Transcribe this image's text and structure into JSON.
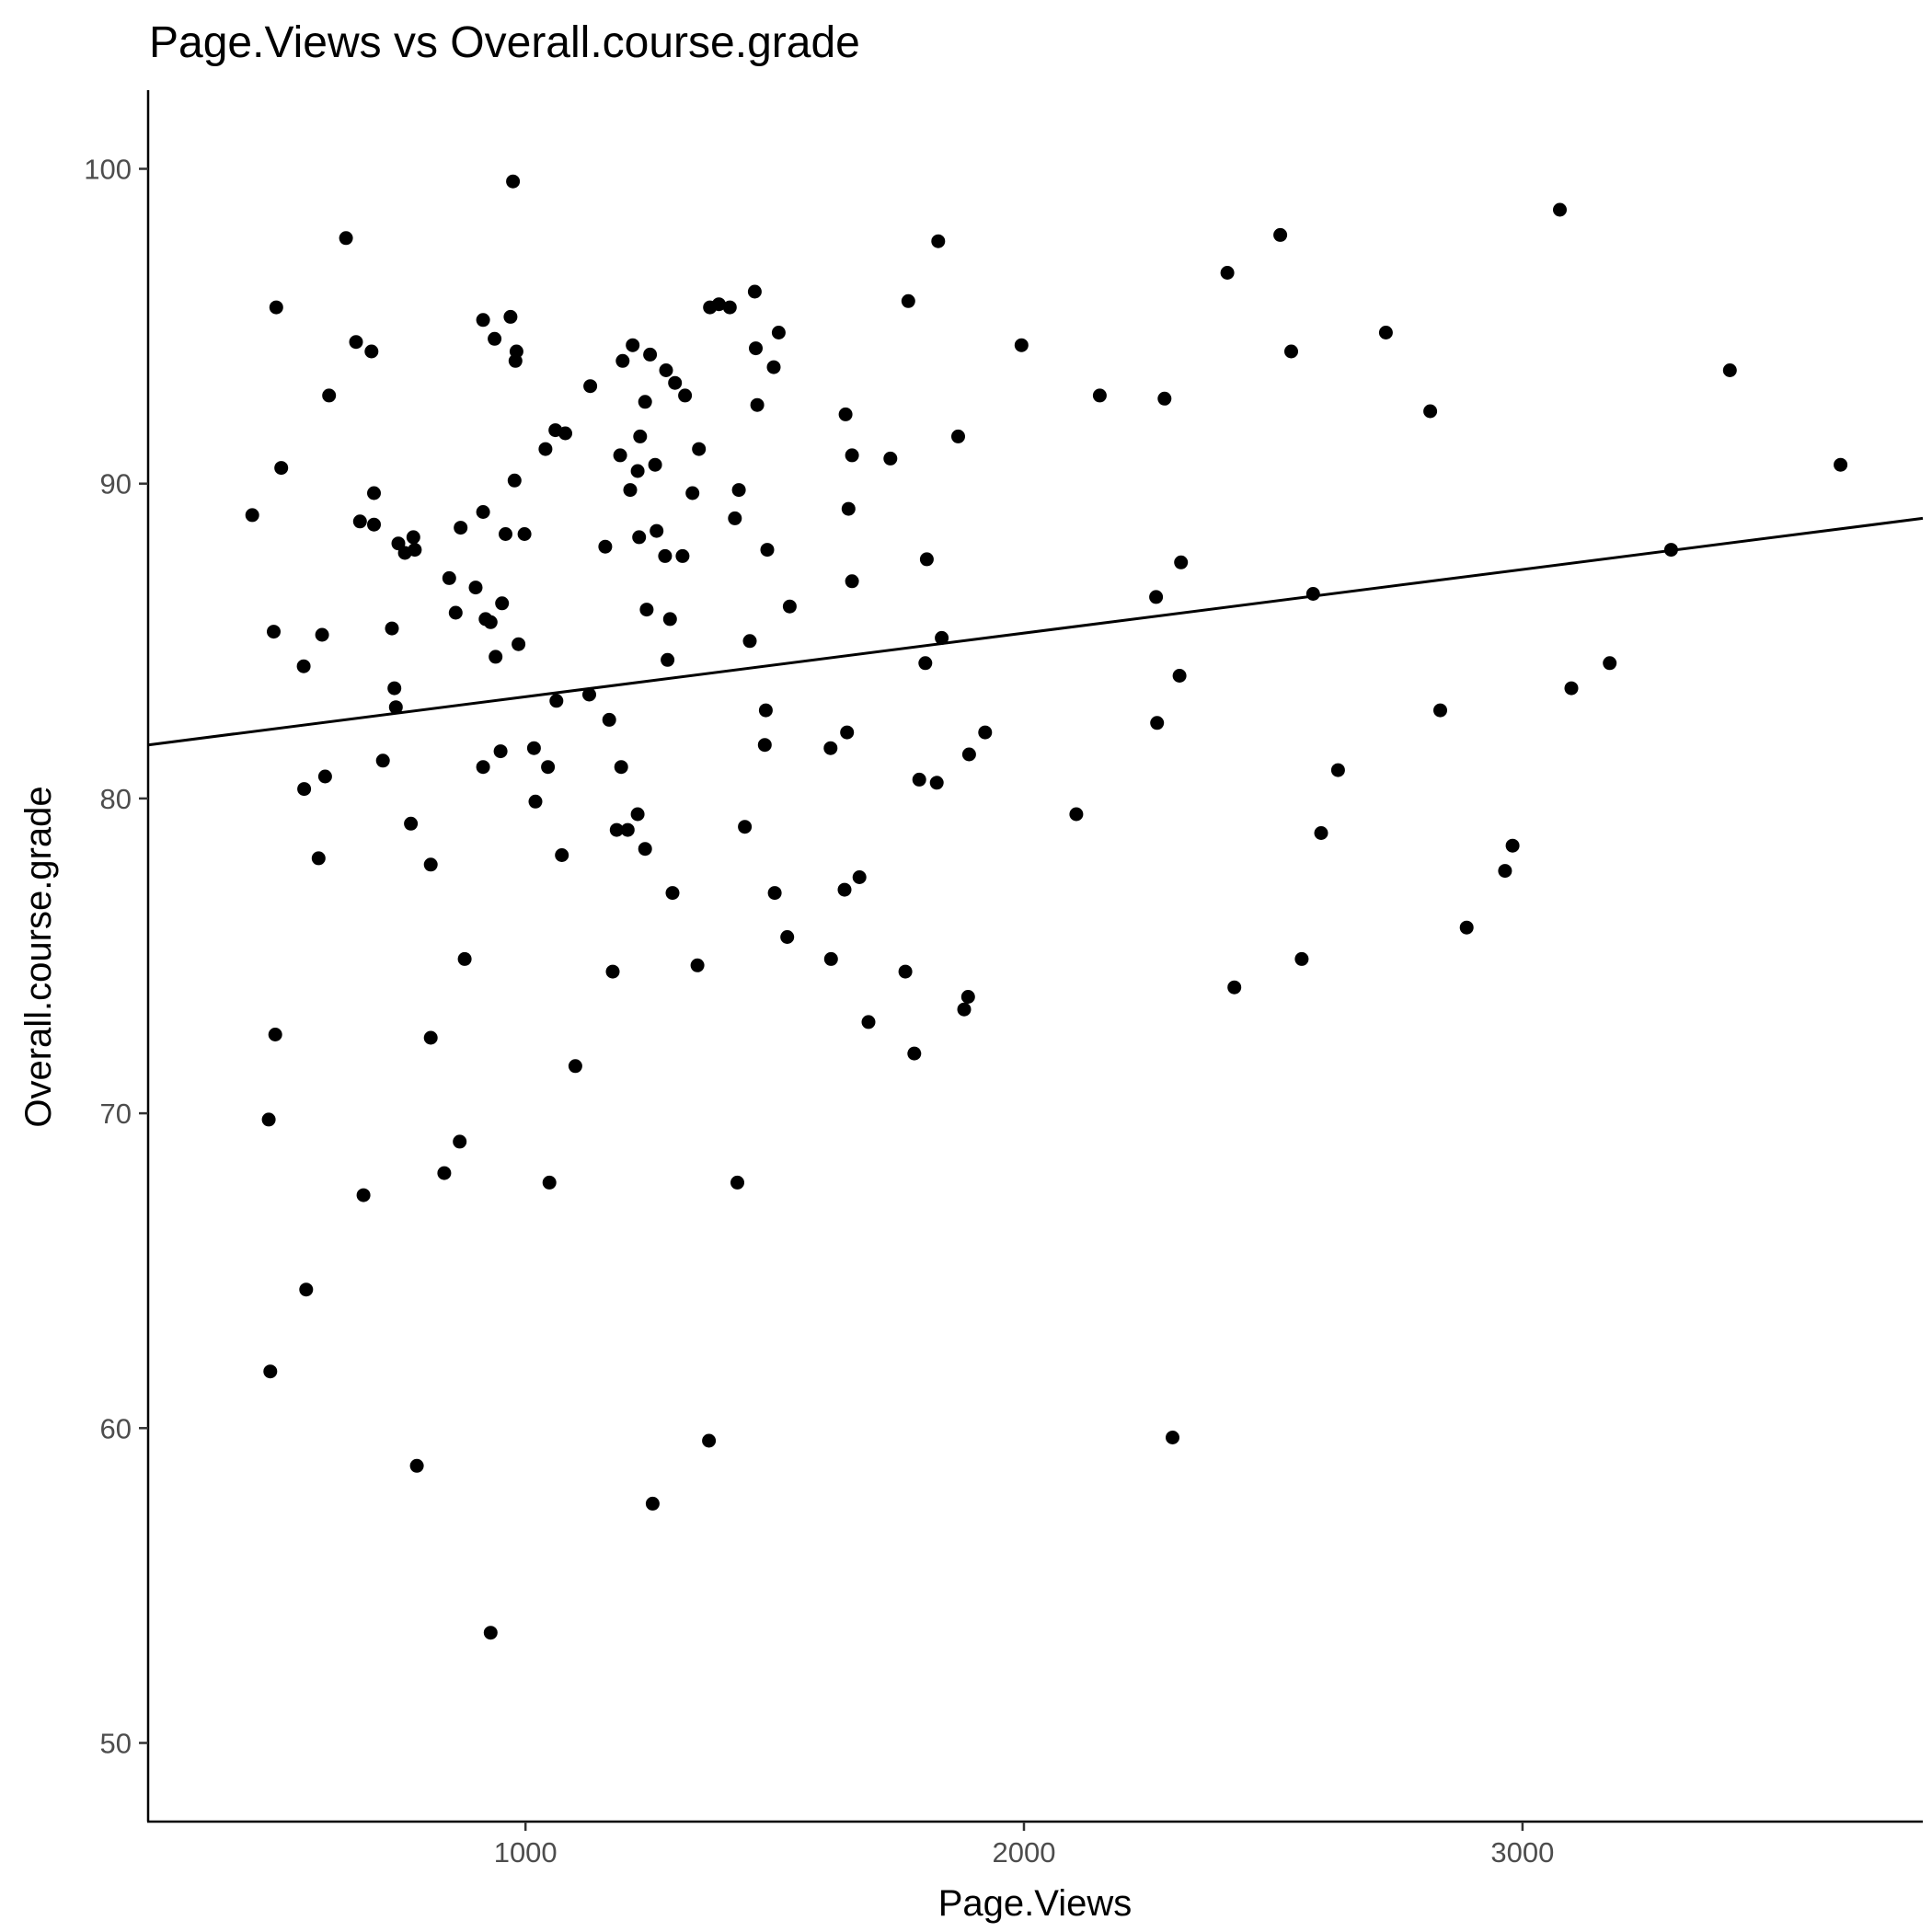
{
  "chart_data": {
    "type": "scatter",
    "title": "Page.Views vs Overall.course.grade",
    "xlabel": "Page.Views",
    "ylabel": "Overall.course.grade",
    "xlim": [
      243,
      3803
    ],
    "ylim": [
      47.5,
      102.5
    ],
    "x_ticks": [
      1000,
      2000,
      3000
    ],
    "y_ticks": [
      50,
      60,
      70,
      80,
      90,
      100
    ],
    "grid": false,
    "trend_line": {
      "x": [
        243,
        3803
      ],
      "y": [
        81.7,
        88.9
      ]
    },
    "points": [
      [
        452,
        89.0
      ],
      [
        495,
        85.3
      ],
      [
        500,
        95.6
      ],
      [
        510,
        90.5
      ],
      [
        498,
        72.5
      ],
      [
        485,
        69.8
      ],
      [
        488,
        61.8
      ],
      [
        555,
        84.2
      ],
      [
        556,
        80.3
      ],
      [
        560,
        64.4
      ],
      [
        585,
        78.1
      ],
      [
        592,
        85.2
      ],
      [
        598,
        80.7
      ],
      [
        606,
        92.8
      ],
      [
        640,
        97.8
      ],
      [
        660,
        94.5
      ],
      [
        668,
        88.8
      ],
      [
        675,
        67.4
      ],
      [
        691,
        94.2
      ],
      [
        696,
        89.7
      ],
      [
        696,
        88.7
      ],
      [
        714,
        81.2
      ],
      [
        732,
        85.4
      ],
      [
        737,
        83.5
      ],
      [
        740,
        82.9
      ],
      [
        745,
        88.1
      ],
      [
        758,
        87.8
      ],
      [
        770,
        79.2
      ],
      [
        775,
        88.3
      ],
      [
        778,
        87.9
      ],
      [
        782,
        58.8
      ],
      [
        810,
        77.9
      ],
      [
        810,
        72.4
      ],
      [
        837,
        68.1
      ],
      [
        847,
        87.0
      ],
      [
        860,
        85.9
      ],
      [
        868,
        69.1
      ],
      [
        870,
        88.6
      ],
      [
        878,
        74.9
      ],
      [
        900,
        86.7
      ],
      [
        915,
        95.2
      ],
      [
        915,
        89.1
      ],
      [
        915,
        81.0
      ],
      [
        920,
        85.7
      ],
      [
        930,
        53.5
      ],
      [
        930,
        85.6
      ],
      [
        938,
        94.6
      ],
      [
        940,
        84.5
      ],
      [
        950,
        81.5
      ],
      [
        953,
        86.2
      ],
      [
        960,
        88.4
      ],
      [
        970,
        95.3
      ],
      [
        975,
        99.6
      ],
      [
        978,
        90.1
      ],
      [
        980,
        93.9
      ],
      [
        982,
        94.2
      ],
      [
        986,
        84.9
      ],
      [
        998,
        88.4
      ],
      [
        1017,
        81.6
      ],
      [
        1020,
        79.9
      ],
      [
        1040,
        91.1
      ],
      [
        1045,
        81.0
      ],
      [
        1048,
        67.8
      ],
      [
        1060,
        91.7
      ],
      [
        1062,
        83.1
      ],
      [
        1073,
        78.2
      ],
      [
        1080,
        91.6
      ],
      [
        1100,
        71.5
      ],
      [
        1128,
        83.3
      ],
      [
        1130,
        93.1
      ],
      [
        1160,
        88.0
      ],
      [
        1168,
        82.5
      ],
      [
        1175,
        74.5
      ],
      [
        1183,
        79.0
      ],
      [
        1190,
        90.9
      ],
      [
        1192,
        81.0
      ],
      [
        1195,
        93.9
      ],
      [
        1205,
        79.0
      ],
      [
        1210,
        89.8
      ],
      [
        1215,
        94.4
      ],
      [
        1225,
        90.4
      ],
      [
        1225,
        79.5
      ],
      [
        1228,
        88.3
      ],
      [
        1230,
        91.5
      ],
      [
        1240,
        92.6
      ],
      [
        1240,
        78.4
      ],
      [
        1243,
        86.0
      ],
      [
        1250,
        94.1
      ],
      [
        1255,
        57.6
      ],
      [
        1260,
        90.6
      ],
      [
        1263,
        88.5
      ],
      [
        1280,
        87.7
      ],
      [
        1282,
        93.6
      ],
      [
        1285,
        84.4
      ],
      [
        1290,
        85.7
      ],
      [
        1295,
        77.0
      ],
      [
        1300,
        93.2
      ],
      [
        1315,
        87.7
      ],
      [
        1320,
        92.8
      ],
      [
        1335,
        89.7
      ],
      [
        1345,
        74.7
      ],
      [
        1348,
        91.1
      ],
      [
        1368,
        59.6
      ],
      [
        1370,
        95.6
      ],
      [
        1388,
        95.7
      ],
      [
        1410,
        95.6
      ],
      [
        1420,
        88.9
      ],
      [
        1425,
        67.8
      ],
      [
        1428,
        89.8
      ],
      [
        1440,
        79.1
      ],
      [
        1450,
        85.0
      ],
      [
        1460,
        96.1
      ],
      [
        1462,
        94.3
      ],
      [
        1465,
        92.5
      ],
      [
        1480,
        81.7
      ],
      [
        1482,
        82.8
      ],
      [
        1485,
        87.9
      ],
      [
        1498,
        93.7
      ],
      [
        1500,
        77.0
      ],
      [
        1508,
        94.8
      ],
      [
        1525,
        75.6
      ],
      [
        1530,
        86.1
      ],
      [
        1612,
        81.6
      ],
      [
        1613,
        74.9
      ],
      [
        1640,
        77.1
      ],
      [
        1642,
        92.2
      ],
      [
        1645,
        82.1
      ],
      [
        1648,
        89.2
      ],
      [
        1655,
        86.9
      ],
      [
        1655,
        90.9
      ],
      [
        1670,
        77.5
      ],
      [
        1688,
        72.9
      ],
      [
        1732,
        90.8
      ],
      [
        1762,
        74.5
      ],
      [
        1768,
        95.8
      ],
      [
        1780,
        71.9
      ],
      [
        1790,
        80.6
      ],
      [
        1802,
        84.3
      ],
      [
        1805,
        87.6
      ],
      [
        1825,
        80.5
      ],
      [
        1828,
        97.7
      ],
      [
        1835,
        85.1
      ],
      [
        1868,
        91.5
      ],
      [
        1880,
        73.3
      ],
      [
        1888,
        73.7
      ],
      [
        1890,
        81.4
      ],
      [
        1922,
        82.1
      ],
      [
        1995,
        94.4
      ],
      [
        2105,
        79.5
      ],
      [
        2152,
        92.8
      ],
      [
        2265,
        86.4
      ],
      [
        2267,
        82.4
      ],
      [
        2282,
        92.7
      ],
      [
        2298,
        59.7
      ],
      [
        2312,
        83.9
      ],
      [
        2315,
        87.5
      ],
      [
        2408,
        96.7
      ],
      [
        2422,
        74.0
      ],
      [
        2514,
        97.9
      ],
      [
        2536,
        94.2
      ],
      [
        2557,
        74.9
      ],
      [
        2580,
        86.5
      ],
      [
        2596,
        78.9
      ],
      [
        2630,
        80.9
      ],
      [
        2726,
        94.8
      ],
      [
        2815,
        92.3
      ],
      [
        2835,
        82.8
      ],
      [
        2888,
        75.9
      ],
      [
        2965,
        77.7
      ],
      [
        2980,
        78.5
      ],
      [
        3075,
        98.7
      ],
      [
        3098,
        83.5
      ],
      [
        3175,
        84.3
      ],
      [
        3298,
        87.9
      ],
      [
        3416,
        93.6
      ],
      [
        3638,
        90.6
      ]
    ]
  }
}
